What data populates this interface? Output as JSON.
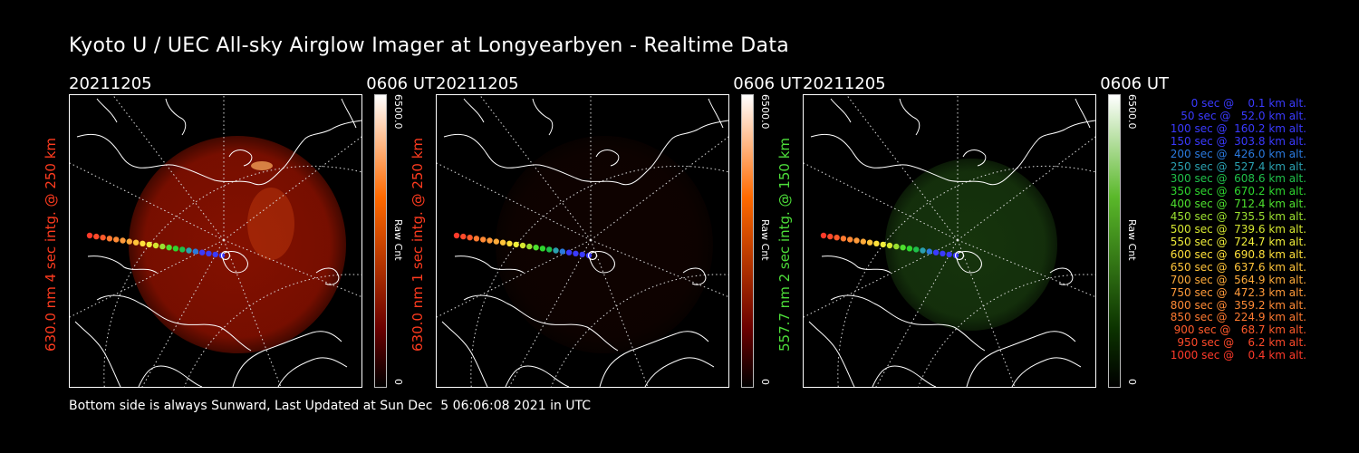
{
  "title": "Kyoto U / UEC All-sky Airglow Imager at Longyearbyen - Realtime Data",
  "footer": "Bottom side is always Sunward, Last Updated at Sun Dec  5 06:06:08 2021 in UTC",
  "panels": [
    {
      "date": "20211205",
      "time": "0606 UT",
      "ylabel": "630.0 nm 4 sec intg. @ 250 km",
      "label_color": "#ff3b1f",
      "colorbar_max": "6500.0",
      "colorbar_unit": "Raw Cnt",
      "colorbar_min": "0",
      "cbar_top_color": "#ffffff",
      "cbar_mid_color": "#ff6a00",
      "cbar_low_color": "#6a0000",
      "image_color": "#9b1300",
      "brightness": 0.85
    },
    {
      "date": "20211205",
      "time": "0606 UT",
      "ylabel": "630.0 nm 1 sec intg. @ 250 km",
      "label_color": "#ff3b1f",
      "colorbar_max": "6500.0",
      "colorbar_unit": "Raw Cnt",
      "colorbar_min": "0",
      "cbar_top_color": "#ffffff",
      "cbar_mid_color": "#ff6a00",
      "cbar_low_color": "#6a0000",
      "image_color": "#2a0700",
      "brightness": 0.35
    },
    {
      "date": "20211205",
      "time": "0606 UT",
      "ylabel": "557.7 nm 2 sec intg. @ 150 km",
      "label_color": "#4dde3a",
      "colorbar_max": "6500.0",
      "colorbar_unit": "Raw Cnt",
      "colorbar_min": "0",
      "cbar_top_color": "#ffffff",
      "cbar_mid_color": "#5ab82a",
      "cbar_low_color": "#0c3300",
      "image_color": "#1f4a12",
      "brightness": 0.7
    }
  ],
  "legend": [
    {
      "text": "   0 sec @    0.1 km alt.",
      "color": "#3a3aff"
    },
    {
      "text": "  50 sec @   52.0 km alt.",
      "color": "#3a3aff"
    },
    {
      "text": " 100 sec @  160.2 km alt.",
      "color": "#3a3aff"
    },
    {
      "text": " 150 sec @  303.8 km alt.",
      "color": "#3a3aff"
    },
    {
      "text": " 200 sec @  426.0 km alt.",
      "color": "#2a7adf"
    },
    {
      "text": " 250 sec @  527.4 km alt.",
      "color": "#2aa0b0"
    },
    {
      "text": " 300 sec @  608.6 km alt.",
      "color": "#1fc04a"
    },
    {
      "text": " 350 sec @  670.2 km alt.",
      "color": "#2ed62e"
    },
    {
      "text": " 400 sec @  712.4 km alt.",
      "color": "#4ee02e"
    },
    {
      "text": " 450 sec @  735.5 km alt.",
      "color": "#9be030"
    },
    {
      "text": " 500 sec @  739.6 km alt.",
      "color": "#d6e830"
    },
    {
      "text": " 550 sec @  724.7 km alt.",
      "color": "#f0ee3a"
    },
    {
      "text": " 600 sec @  690.8 km alt.",
      "color": "#ffe03a"
    },
    {
      "text": " 650 sec @  637.6 km alt.",
      "color": "#ffc43a"
    },
    {
      "text": " 700 sec @  564.9 km alt.",
      "color": "#ffab3a"
    },
    {
      "text": " 750 sec @  472.3 km alt.",
      "color": "#ff9a3a"
    },
    {
      "text": " 800 sec @  359.2 km alt.",
      "color": "#ff8a35"
    },
    {
      "text": " 850 sec @  224.9 km alt.",
      "color": "#ff7a30"
    },
    {
      "text": " 900 sec @   68.7 km alt.",
      "color": "#ff5a2a"
    },
    {
      "text": " 950 sec @    6.2 km alt.",
      "color": "#ff4a2a"
    },
    {
      "text": "1000 sec @    0.4 km alt.",
      "color": "#ff3a2a"
    }
  ]
}
